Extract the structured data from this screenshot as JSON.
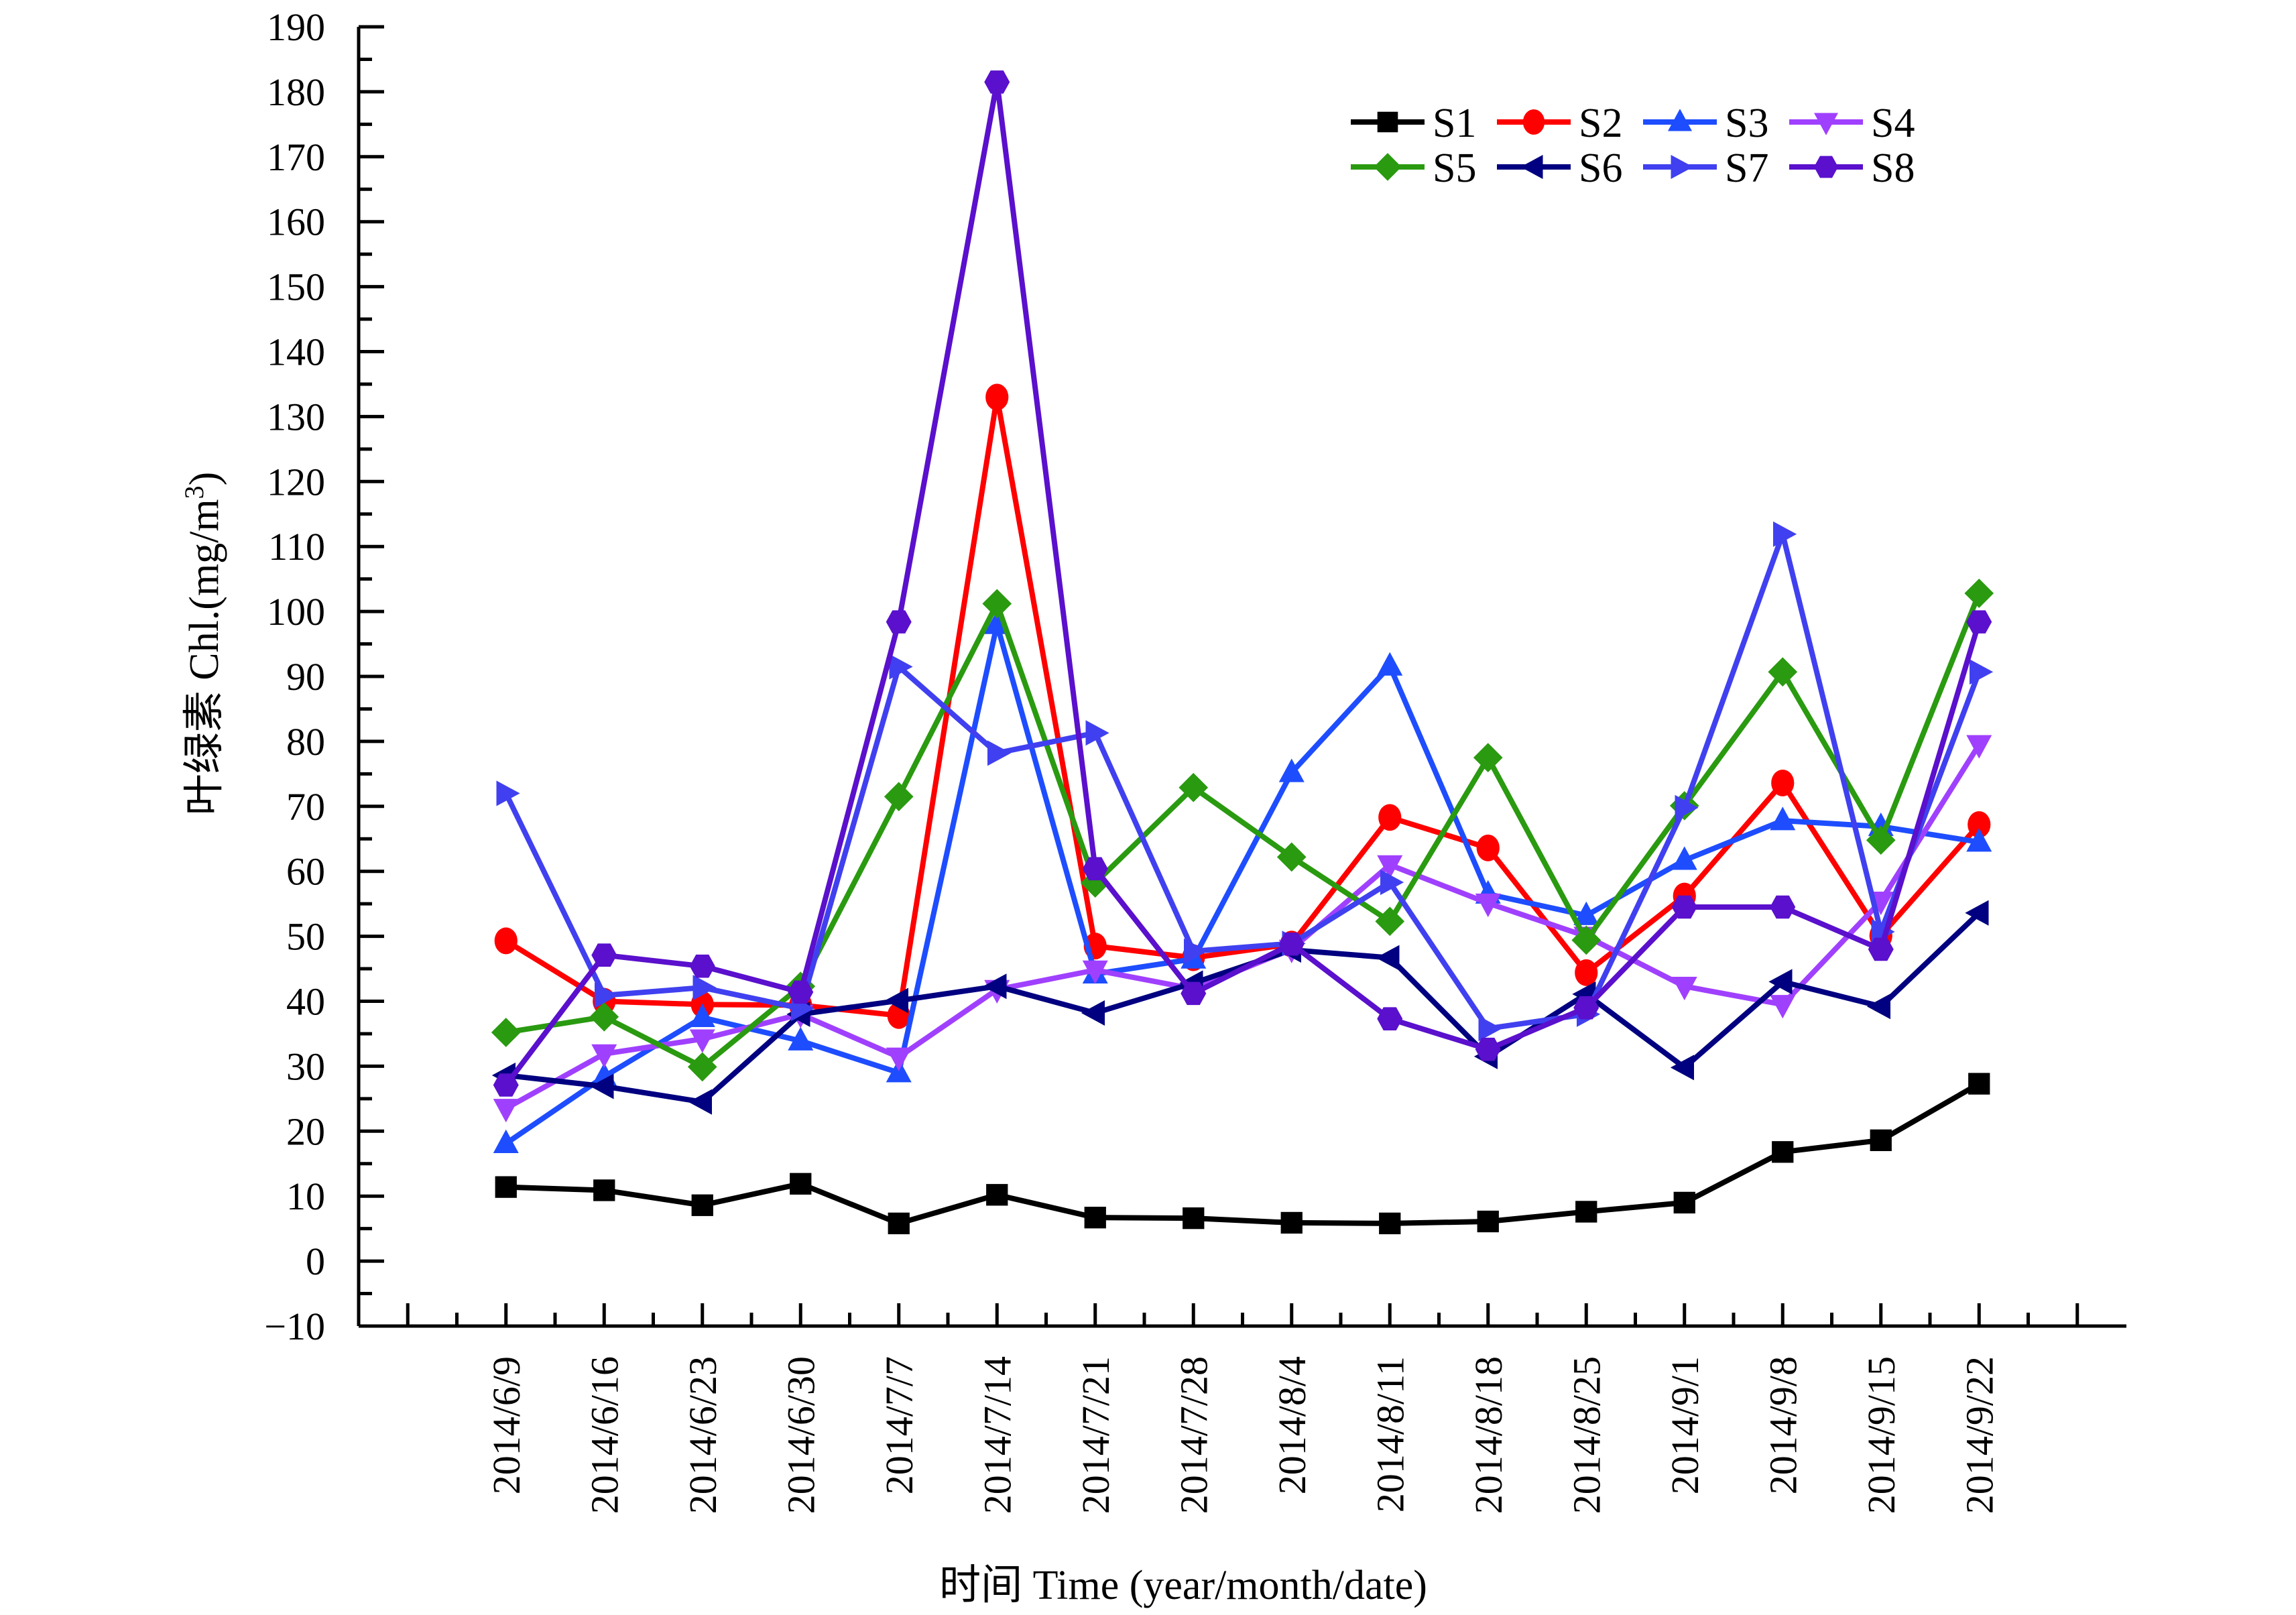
{
  "chart_data": {
    "type": "line",
    "title": "",
    "xlabel": "时间 Time (year/month/date)",
    "ylabel_prefix": "叶绿素 Chl.(mg/m",
    "ylabel_sup": "3",
    "ylabel_suffix": ")",
    "ylim": [
      -10,
      190
    ],
    "yticks": [
      -10,
      0,
      10,
      20,
      30,
      40,
      50,
      60,
      70,
      80,
      90,
      100,
      110,
      120,
      130,
      140,
      150,
      160,
      170,
      180,
      190
    ],
    "ytick_labels": [
      "−10",
      "0",
      "10",
      "20",
      "30",
      "40",
      "50",
      "60",
      "70",
      "80",
      "90",
      "100",
      "110",
      "120",
      "130",
      "140",
      "150",
      "160",
      "170",
      "180",
      "190"
    ],
    "grid": false,
    "legend_position": "top-right",
    "categories": [
      "2014/6/9",
      "2014/6/16",
      "2014/6/23",
      "2014/6/30",
      "2014/7/7",
      "2014/7/14",
      "2014/7/21",
      "2014/7/28",
      "2014/8/4",
      "2014/8/11",
      "2014/8/18",
      "2014/8/25",
      "2014/9/1",
      "2014/9/8",
      "2014/9/15",
      "2014/9/22"
    ],
    "series": [
      {
        "name": "S1",
        "color": "#000000",
        "marker": "square",
        "values": [
          11.4,
          10.9,
          8.6,
          11.9,
          5.8,
          10.2,
          6.7,
          6.6,
          5.9,
          5.8,
          6.1,
          7.6,
          9.0,
          16.8,
          18.6,
          27.3
        ]
      },
      {
        "name": "S2",
        "color": "#ff0000",
        "marker": "circle",
        "values": [
          49.3,
          40.0,
          39.5,
          39.4,
          37.8,
          133.0,
          48.5,
          46.7,
          48.8,
          68.3,
          63.6,
          44.4,
          56.2,
          73.6,
          50.1,
          67.2
        ]
      },
      {
        "name": "S3",
        "color": "#1e4dff",
        "marker": "triangle-up",
        "values": [
          18.1,
          28.4,
          37.5,
          33.9,
          29.0,
          98.0,
          44.2,
          46.5,
          75.2,
          91.6,
          56.5,
          53.2,
          61.7,
          67.8,
          66.9,
          64.5
        ]
      },
      {
        "name": "S4",
        "color": "#a040ff",
        "marker": "triangle-down",
        "values": [
          23.5,
          31.9,
          34.2,
          38.0,
          31.4,
          41.8,
          44.8,
          41.9,
          48.0,
          61.0,
          55.1,
          50.0,
          42.3,
          39.5,
          55.4,
          79.5
        ]
      },
      {
        "name": "S5",
        "color": "#2a9a10",
        "marker": "diamond",
        "values": [
          35.2,
          37.6,
          29.9,
          42.3,
          71.5,
          101.2,
          58.2,
          72.9,
          62.2,
          52.3,
          77.5,
          49.4,
          70.1,
          90.7,
          64.8,
          102.8
        ]
      },
      {
        "name": "S6",
        "color": "#000080",
        "marker": "triangle-left",
        "values": [
          28.6,
          26.9,
          24.5,
          38.0,
          40.1,
          42.3,
          38.2,
          42.8,
          47.9,
          46.7,
          31.5,
          41.1,
          29.8,
          43.0,
          39.2,
          53.6
        ]
      },
      {
        "name": "S7",
        "color": "#4040f0",
        "marker": "triangle-right",
        "values": [
          72.0,
          40.9,
          42.1,
          38.9,
          91.5,
          78.2,
          81.3,
          47.7,
          48.9,
          58.3,
          35.8,
          38.0,
          69.8,
          111.9,
          50.7,
          90.7
        ]
      },
      {
        "name": "S8",
        "color": "#5a10cc",
        "marker": "hexagon",
        "values": [
          27.1,
          47.1,
          45.4,
          41.4,
          98.4,
          181.5,
          60.4,
          41.2,
          48.8,
          37.3,
          32.6,
          39.0,
          54.5,
          54.5,
          48.0,
          98.4
        ]
      }
    ]
  }
}
